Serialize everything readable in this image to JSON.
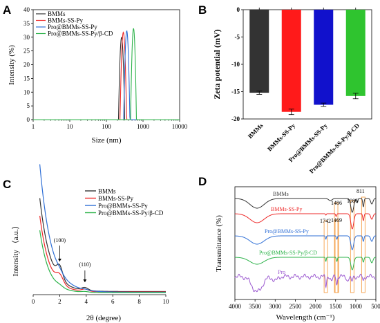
{
  "panels": {
    "A": "A",
    "B": "B",
    "C": "C",
    "D": "D"
  },
  "colors": {
    "BMMs": "#333333",
    "BMMs-SS-Py": "#ee2a2a",
    "Pro@BMMs-SS-Py": "#2f6fd6",
    "Pro@BMMs-SS-Py/β-CD": "#2db34a",
    "Pro": "#9b59d0",
    "barBlue": "#1111cc",
    "barGreen": "#2fc42f",
    "barRed": "#ff1a1a",
    "barBlack": "#333333",
    "highlight": "#f5a04a"
  },
  "chart_data": [
    {
      "id": "A",
      "type": "line",
      "xlabel": "Size (nm)",
      "ylabel": "Intensity (%)",
      "xscale": "log",
      "xlim": [
        1,
        10000
      ],
      "ylim": [
        0,
        40
      ],
      "xticks": [
        1,
        10,
        100,
        1000,
        10000
      ],
      "xtick_labels": [
        "1",
        "10",
        "100",
        "1000",
        "10000"
      ],
      "yticks": [
        0,
        5,
        10,
        15,
        20,
        25,
        30,
        35,
        40
      ],
      "legend": "top-left",
      "series": [
        {
          "name": "BMMs",
          "color": "#333333",
          "peaks": [
            {
              "center": 260,
              "height": 30,
              "width": 0.085
            }
          ]
        },
        {
          "name": "BMMs-SS-Py",
          "color": "#ee2a2a",
          "peaks": [
            {
              "center": 290,
              "height": 31.8,
              "width": 0.09
            }
          ]
        },
        {
          "name": "Pro@BMMs-SS-Py",
          "color": "#2f6fd6",
          "peaks": [
            {
              "center": 360,
              "height": 32.3,
              "width": 0.085
            }
          ]
        },
        {
          "name": "Pro@BMMs-SS-Py/β-CD",
          "color": "#2db34a",
          "peaks": [
            {
              "center": 550,
              "height": 33.2,
              "width": 0.08
            }
          ]
        }
      ]
    },
    {
      "id": "B",
      "type": "bar",
      "ylabel": "Zeta potential (mV)",
      "ylim": [
        -20,
        0
      ],
      "yticks": [
        0,
        -5,
        -10,
        -15,
        -20
      ],
      "categories": [
        "BMMs",
        "BMMs-SS-Py",
        "Pro@BMMs-SS-Py",
        "Pro@BMMs-SS-Py/β-CD"
      ],
      "values": [
        -15.2,
        -18.7,
        -17.4,
        -15.8
      ],
      "errors": [
        0.3,
        0.5,
        0.3,
        0.5
      ],
      "bar_colors": [
        "#333333",
        "#ff1a1a",
        "#1111cc",
        "#2fc42f"
      ]
    },
    {
      "id": "C",
      "type": "line",
      "xlabel": "2θ (degree)",
      "ylabel": "Intensity （a.u.）",
      "xlim": [
        0,
        10
      ],
      "xticks": [
        0,
        2,
        4,
        6,
        8,
        10
      ],
      "legend": "top-right",
      "annotations": [
        {
          "label": "(100)",
          "x": 2.0
        },
        {
          "label": "(110)",
          "x": 3.9
        }
      ],
      "series": [
        {
          "name": "BMMs",
          "color": "#333333"
        },
        {
          "name": "BMMs-SS-Py",
          "color": "#ee2a2a"
        },
        {
          "name": "Pro@BMMs-SS-Py",
          "color": "#2f6fd6"
        },
        {
          "name": "Pro@BMMs-SS-Py/β-CD",
          "color": "#2db34a"
        }
      ]
    },
    {
      "id": "D",
      "type": "line",
      "xlabel": "Wavelength (cm⁻¹)",
      "ylabel": "Transmittance (%)",
      "xlim": [
        4000,
        500
      ],
      "xticks": [
        4000,
        3500,
        3000,
        2500,
        2000,
        1500,
        1000,
        500
      ],
      "series": [
        {
          "name": "BMMs",
          "color": "#333333"
        },
        {
          "name": "BMMs-SS-Py",
          "color": "#ee2a2a"
        },
        {
          "name": "Pro@BMMs-SS-Py",
          "color": "#2f6fd6"
        },
        {
          "name": "Pro@BMMs-SS-Py/β-CD",
          "color": "#2db34a"
        },
        {
          "name": "Pro",
          "color": "#9b59d0"
        }
      ],
      "peak_labels": [
        "1742",
        "1486",
        "1469",
        "1086",
        "811"
      ],
      "highlight_bands": [
        1742,
        1486,
        1469,
        1086,
        811
      ]
    }
  ]
}
